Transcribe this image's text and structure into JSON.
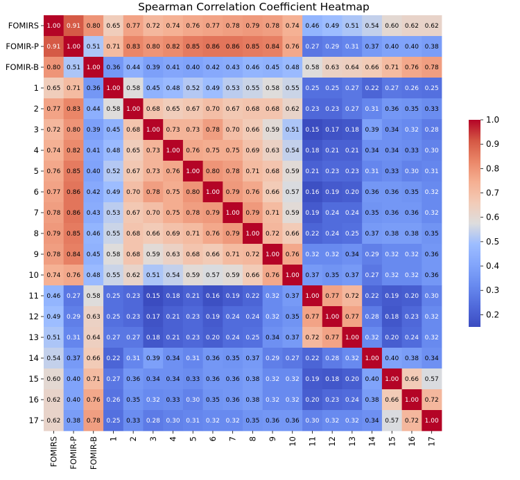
{
  "chart_data": {
    "type": "heatmap",
    "title": "Spearman Correlation Coefficient Heatmap",
    "xlabel": "",
    "ylabel": "",
    "labels": [
      "FOMIRS",
      "FOMIR-P",
      "FOMIR-B",
      "1",
      "2",
      "3",
      "4",
      "5",
      "6",
      "7",
      "8",
      "9",
      "10",
      "11",
      "12",
      "13",
      "14",
      "15",
      "16",
      "17"
    ],
    "matrix": [
      [
        1.0,
        0.91,
        0.8,
        0.65,
        0.77,
        0.72,
        0.74,
        0.76,
        0.77,
        0.78,
        0.79,
        0.78,
        0.74,
        0.46,
        0.49,
        0.51,
        0.54,
        0.6,
        0.62,
        0.62
      ],
      [
        0.91,
        1.0,
        0.51,
        0.71,
        0.83,
        0.8,
        0.82,
        0.85,
        0.86,
        0.86,
        0.85,
        0.84,
        0.76,
        0.27,
        0.29,
        0.31,
        0.37,
        0.4,
        0.4,
        0.38
      ],
      [
        0.8,
        0.51,
        1.0,
        0.36,
        0.44,
        0.39,
        0.41,
        0.4,
        0.42,
        0.43,
        0.46,
        0.45,
        0.48,
        0.58,
        0.63,
        0.64,
        0.66,
        0.71,
        0.76,
        0.78
      ],
      [
        0.65,
        0.71,
        0.36,
        1.0,
        0.58,
        0.45,
        0.48,
        0.52,
        0.49,
        0.53,
        0.55,
        0.58,
        0.55,
        0.25,
        0.25,
        0.27,
        0.22,
        0.27,
        0.26,
        0.25
      ],
      [
        0.77,
        0.83,
        0.44,
        0.58,
        1.0,
        0.68,
        0.65,
        0.67,
        0.7,
        0.67,
        0.68,
        0.68,
        0.62,
        0.23,
        0.23,
        0.27,
        0.31,
        0.36,
        0.35,
        0.33
      ],
      [
        0.72,
        0.8,
        0.39,
        0.45,
        0.68,
        1.0,
        0.73,
        0.73,
        0.78,
        0.7,
        0.66,
        0.59,
        0.51,
        0.15,
        0.17,
        0.18,
        0.39,
        0.34,
        0.32,
        0.28
      ],
      [
        0.74,
        0.82,
        0.41,
        0.48,
        0.65,
        0.73,
        1.0,
        0.76,
        0.75,
        0.75,
        0.69,
        0.63,
        0.54,
        0.18,
        0.21,
        0.21,
        0.34,
        0.34,
        0.33,
        0.3
      ],
      [
        0.76,
        0.85,
        0.4,
        0.52,
        0.67,
        0.73,
        0.76,
        1.0,
        0.8,
        0.78,
        0.71,
        0.68,
        0.59,
        0.21,
        0.23,
        0.23,
        0.31,
        0.33,
        0.3,
        0.31
      ],
      [
        0.77,
        0.86,
        0.42,
        0.49,
        0.7,
        0.78,
        0.75,
        0.8,
        1.0,
        0.79,
        0.76,
        0.66,
        0.57,
        0.16,
        0.19,
        0.2,
        0.36,
        0.36,
        0.35,
        0.32
      ],
      [
        0.78,
        0.86,
        0.43,
        0.53,
        0.67,
        0.7,
        0.75,
        0.78,
        0.79,
        1.0,
        0.79,
        0.71,
        0.59,
        0.19,
        0.24,
        0.24,
        0.35,
        0.36,
        0.36,
        0.32
      ],
      [
        0.79,
        0.85,
        0.46,
        0.55,
        0.68,
        0.66,
        0.69,
        0.71,
        0.76,
        0.79,
        1.0,
        0.72,
        0.66,
        0.22,
        0.24,
        0.25,
        0.37,
        0.38,
        0.38,
        0.35
      ],
      [
        0.78,
        0.84,
        0.45,
        0.58,
        0.68,
        0.59,
        0.63,
        0.68,
        0.66,
        0.71,
        0.72,
        1.0,
        0.76,
        0.32,
        0.32,
        0.34,
        0.29,
        0.32,
        0.32,
        0.36
      ],
      [
        0.74,
        0.76,
        0.48,
        0.55,
        0.62,
        0.51,
        0.54,
        0.59,
        0.57,
        0.59,
        0.66,
        0.76,
        1.0,
        0.37,
        0.35,
        0.37,
        0.27,
        0.32,
        0.32,
        0.36
      ],
      [
        0.46,
        0.27,
        0.58,
        0.25,
        0.23,
        0.15,
        0.18,
        0.21,
        0.16,
        0.19,
        0.22,
        0.32,
        0.37,
        1.0,
        0.77,
        0.72,
        0.22,
        0.19,
        0.2,
        0.3
      ],
      [
        0.49,
        0.29,
        0.63,
        0.25,
        0.23,
        0.17,
        0.21,
        0.23,
        0.19,
        0.24,
        0.24,
        0.32,
        0.35,
        0.77,
        1.0,
        0.77,
        0.28,
        0.18,
        0.23,
        0.32
      ],
      [
        0.51,
        0.31,
        0.64,
        0.27,
        0.27,
        0.18,
        0.21,
        0.23,
        0.2,
        0.24,
        0.25,
        0.34,
        0.37,
        0.72,
        0.77,
        1.0,
        0.32,
        0.2,
        0.24,
        0.32
      ],
      [
        0.54,
        0.37,
        0.66,
        0.22,
        0.31,
        0.39,
        0.34,
        0.31,
        0.36,
        0.35,
        0.37,
        0.29,
        0.27,
        0.22,
        0.28,
        0.32,
        1.0,
        0.4,
        0.38,
        0.34
      ],
      [
        0.6,
        0.4,
        0.71,
        0.27,
        0.36,
        0.34,
        0.34,
        0.33,
        0.36,
        0.36,
        0.38,
        0.32,
        0.32,
        0.19,
        0.18,
        0.2,
        0.4,
        1.0,
        0.66,
        0.57
      ],
      [
        0.62,
        0.4,
        0.76,
        0.26,
        0.35,
        0.32,
        0.33,
        0.3,
        0.35,
        0.36,
        0.38,
        0.32,
        0.32,
        0.2,
        0.23,
        0.24,
        0.38,
        0.66,
        1.0,
        0.72
      ],
      [
        0.62,
        0.38,
        0.78,
        0.25,
        0.33,
        0.28,
        0.3,
        0.31,
        0.32,
        0.32,
        0.35,
        0.36,
        0.36,
        0.3,
        0.32,
        0.32,
        0.34,
        0.57,
        0.72,
        1.0
      ]
    ],
    "value_range": [
      0.15,
      1.0
    ],
    "colormap": "coolwarm",
    "colorbar": {
      "ticks": [
        1.0,
        0.9,
        0.8,
        0.7,
        0.6,
        0.5,
        0.4,
        0.3,
        0.2
      ],
      "tick_labels": [
        "1.0",
        "0.9",
        "0.8",
        "0.7",
        "0.6",
        "0.5",
        "0.4",
        "0.3",
        "0.2"
      ],
      "placement": "right"
    },
    "annotated": true,
    "grid": false
  }
}
